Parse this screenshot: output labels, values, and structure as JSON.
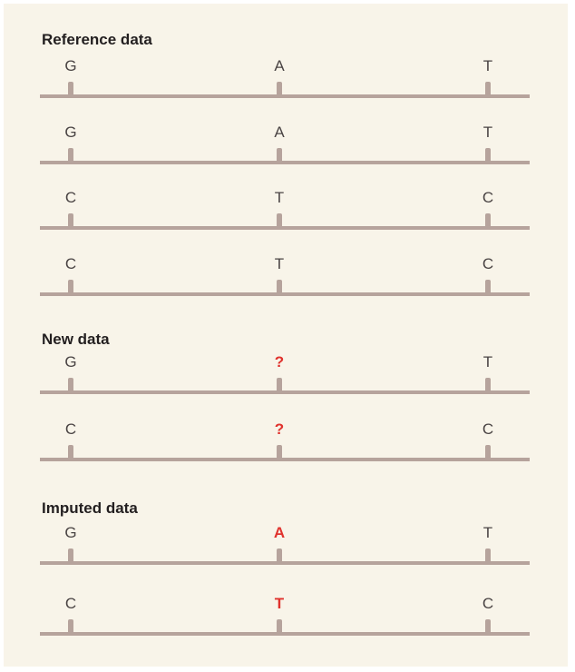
{
  "colors": {
    "background": "#f8f4e9",
    "track": "#b6a39c",
    "base_text": "#4a4444",
    "highlight": "#e0322d",
    "title": "#231f20"
  },
  "sections": [
    {
      "title": "Reference data",
      "rows": [
        {
          "bases": [
            "G",
            "A",
            "T"
          ],
          "highlight": [
            false,
            false,
            false
          ]
        },
        {
          "bases": [
            "G",
            "A",
            "T"
          ],
          "highlight": [
            false,
            false,
            false
          ]
        },
        {
          "bases": [
            "C",
            "T",
            "C"
          ],
          "highlight": [
            false,
            false,
            false
          ]
        },
        {
          "bases": [
            "C",
            "T",
            "C"
          ],
          "highlight": [
            false,
            false,
            false
          ]
        }
      ]
    },
    {
      "title": "New data",
      "rows": [
        {
          "bases": [
            "G",
            "?",
            "T"
          ],
          "highlight": [
            false,
            true,
            false
          ]
        },
        {
          "bases": [
            "C",
            "?",
            "C"
          ],
          "highlight": [
            false,
            true,
            false
          ]
        }
      ]
    },
    {
      "title": "Imputed data",
      "rows": [
        {
          "bases": [
            "G",
            "A",
            "T"
          ],
          "highlight": [
            false,
            true,
            false
          ]
        },
        {
          "bases": [
            "C",
            "T",
            "C"
          ],
          "highlight": [
            false,
            true,
            false
          ]
        }
      ]
    }
  ]
}
